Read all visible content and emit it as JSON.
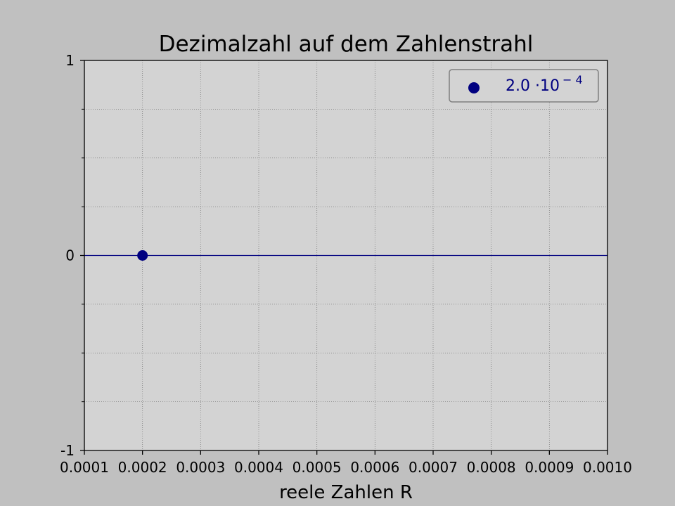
{
  "chart_data": {
    "type": "scatter",
    "title": "Dezimalzahl auf dem Zahlenstrahl",
    "xlabel": "reele Zahlen R",
    "ylabel": "",
    "xlim": [
      0.0001,
      0.001
    ],
    "ylim": [
      -1,
      1
    ],
    "x_ticks": [
      0.0001,
      0.0002,
      0.0003,
      0.0004,
      0.0005,
      0.0006,
      0.0007,
      0.0008,
      0.0009,
      0.001
    ],
    "x_tick_labels": [
      "0.0001",
      "0.0002",
      "0.0003",
      "0.0004",
      "0.0005",
      "0.0006",
      "0.0007",
      "0.0008",
      "0.0009",
      "0.0010"
    ],
    "y_major_ticks": [
      -1,
      0,
      1
    ],
    "y_tick_labels": [
      "-1",
      "0",
      "1"
    ],
    "y_minor_ticks": [
      -0.75,
      -0.5,
      -0.25,
      0.25,
      0.5,
      0.75
    ],
    "grid": true,
    "number_line": {
      "y": 0
    },
    "series": [
      {
        "name": "2.0 ·10",
        "name_exponent": "− 4",
        "points": [
          {
            "x": 0.0002,
            "y": 0
          }
        ]
      }
    ],
    "legend": "top-right",
    "colors": {
      "figure_background": "#c0c0c0",
      "plot_background": "#d3d3d3",
      "marker": "#000080",
      "number_line": "#000080",
      "grid": "#808080",
      "legend_text": "#000080"
    }
  }
}
